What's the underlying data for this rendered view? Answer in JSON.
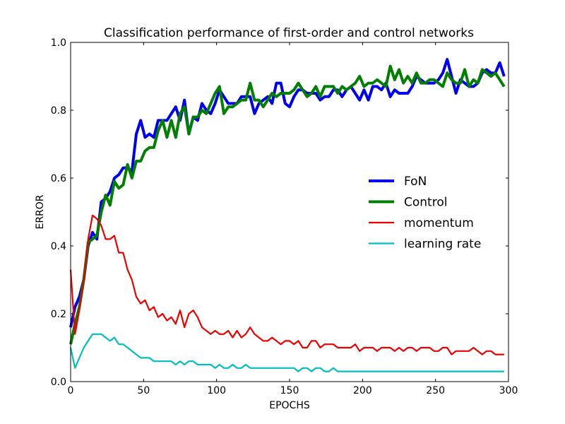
{
  "chart_data": {
    "type": "line",
    "title": "Classification performance of first-order and control networks",
    "xlabel": "EPOCHS",
    "ylabel": "ERROR",
    "xlim": [
      0,
      300
    ],
    "ylim": [
      0.0,
      1.0
    ],
    "xticks": [
      0,
      50,
      100,
      150,
      200,
      250,
      300
    ],
    "xtick_labels": [
      "0",
      "50",
      "100",
      "150",
      "200",
      "250",
      "300"
    ],
    "yticks": [
      0.0,
      0.2,
      0.4,
      0.6,
      0.8,
      1.0
    ],
    "ytick_labels": [
      "0.0",
      "0.2",
      "0.4",
      "0.6",
      "0.8",
      "1.0"
    ],
    "grid": false,
    "legend_position": "center-right",
    "series": [
      {
        "name": "FoN",
        "color": "#0000ee",
        "stroke": "thick",
        "x": [
          0,
          3,
          6,
          9,
          12,
          15,
          18,
          21,
          24,
          27,
          30,
          33,
          36,
          39,
          42,
          45,
          48,
          51,
          54,
          57,
          60,
          63,
          66,
          69,
          72,
          75,
          78,
          81,
          84,
          87,
          90,
          93,
          96,
          99,
          102,
          105,
          108,
          111,
          114,
          117,
          120,
          123,
          126,
          129,
          132,
          135,
          138,
          141,
          144,
          147,
          150,
          153,
          156,
          159,
          162,
          165,
          168,
          171,
          174,
          177,
          180,
          183,
          186,
          189,
          192,
          195,
          198,
          201,
          204,
          207,
          210,
          213,
          216,
          219,
          222,
          225,
          228,
          231,
          234,
          237,
          240,
          243,
          246,
          249,
          252,
          255,
          258,
          261,
          264,
          267,
          270,
          273,
          276,
          279,
          282,
          285,
          288,
          291,
          294,
          297
        ],
        "values": [
          0.16,
          0.22,
          0.25,
          0.3,
          0.4,
          0.44,
          0.42,
          0.53,
          0.54,
          0.56,
          0.6,
          0.61,
          0.63,
          0.63,
          0.62,
          0.73,
          0.77,
          0.72,
          0.73,
          0.72,
          0.77,
          0.77,
          0.77,
          0.79,
          0.81,
          0.77,
          0.83,
          0.73,
          0.78,
          0.77,
          0.82,
          0.8,
          0.79,
          0.82,
          0.86,
          0.84,
          0.82,
          0.82,
          0.82,
          0.84,
          0.84,
          0.84,
          0.79,
          0.82,
          0.83,
          0.84,
          0.82,
          0.88,
          0.88,
          0.82,
          0.81,
          0.84,
          0.86,
          0.86,
          0.85,
          0.85,
          0.85,
          0.83,
          0.84,
          0.84,
          0.86,
          0.86,
          0.84,
          0.86,
          0.87,
          0.85,
          0.83,
          0.86,
          0.83,
          0.87,
          0.87,
          0.86,
          0.88,
          0.84,
          0.86,
          0.85,
          0.85,
          0.85,
          0.87,
          0.9,
          0.89,
          0.88,
          0.88,
          0.88,
          0.89,
          0.91,
          0.95,
          0.9,
          0.85,
          0.89,
          0.88,
          0.87,
          0.87,
          0.88,
          0.91,
          0.92,
          0.91,
          0.91,
          0.94,
          0.9
        ]
      },
      {
        "name": "Control",
        "color": "#007f00",
        "stroke": "thick",
        "x": [
          0,
          3,
          6,
          9,
          12,
          15,
          18,
          21,
          24,
          27,
          30,
          33,
          36,
          39,
          42,
          45,
          48,
          51,
          54,
          57,
          60,
          63,
          66,
          69,
          72,
          75,
          78,
          81,
          84,
          87,
          90,
          93,
          96,
          99,
          102,
          105,
          108,
          111,
          114,
          117,
          120,
          123,
          126,
          129,
          132,
          135,
          138,
          141,
          144,
          147,
          150,
          153,
          156,
          159,
          162,
          165,
          168,
          171,
          174,
          177,
          180,
          183,
          186,
          189,
          192,
          195,
          198,
          201,
          204,
          207,
          210,
          213,
          216,
          219,
          222,
          225,
          228,
          231,
          234,
          237,
          240,
          243,
          246,
          249,
          252,
          255,
          258,
          261,
          264,
          267,
          270,
          273,
          276,
          279,
          282,
          285,
          288,
          291,
          294,
          297
        ],
        "values": [
          0.11,
          0.17,
          0.22,
          0.3,
          0.41,
          0.42,
          0.43,
          0.5,
          0.55,
          0.52,
          0.59,
          0.57,
          0.58,
          0.64,
          0.6,
          0.65,
          0.65,
          0.68,
          0.69,
          0.69,
          0.74,
          0.77,
          0.72,
          0.77,
          0.72,
          0.79,
          0.81,
          0.73,
          0.78,
          0.78,
          0.8,
          0.79,
          0.82,
          0.85,
          0.87,
          0.79,
          0.81,
          0.81,
          0.82,
          0.83,
          0.83,
          0.88,
          0.83,
          0.83,
          0.81,
          0.83,
          0.85,
          0.84,
          0.85,
          0.85,
          0.85,
          0.86,
          0.88,
          0.86,
          0.84,
          0.85,
          0.87,
          0.84,
          0.87,
          0.87,
          0.87,
          0.85,
          0.87,
          0.86,
          0.87,
          0.88,
          0.9,
          0.87,
          0.88,
          0.88,
          0.89,
          0.88,
          0.87,
          0.93,
          0.89,
          0.92,
          0.88,
          0.9,
          0.88,
          0.91,
          0.88,
          0.88,
          0.89,
          0.89,
          0.88,
          0.87,
          0.91,
          0.89,
          0.88,
          0.88,
          0.92,
          0.87,
          0.89,
          0.88,
          0.92,
          0.91,
          0.9,
          0.91,
          0.89,
          0.87
        ]
      },
      {
        "name": "momentum",
        "color": "#ee0000",
        "stroke": "normal",
        "x": [
          0,
          3,
          6,
          9,
          12,
          15,
          18,
          21,
          24,
          27,
          30,
          33,
          36,
          39,
          42,
          45,
          48,
          51,
          54,
          57,
          60,
          63,
          66,
          69,
          72,
          75,
          78,
          81,
          84,
          87,
          90,
          93,
          96,
          99,
          102,
          105,
          108,
          111,
          114,
          117,
          120,
          123,
          126,
          129,
          132,
          135,
          138,
          141,
          144,
          147,
          150,
          153,
          156,
          159,
          162,
          165,
          168,
          171,
          174,
          177,
          180,
          183,
          186,
          189,
          192,
          195,
          198,
          201,
          204,
          207,
          210,
          213,
          216,
          219,
          222,
          225,
          228,
          231,
          234,
          237,
          240,
          243,
          246,
          249,
          252,
          255,
          258,
          261,
          264,
          267,
          270,
          273,
          276,
          279,
          282,
          285,
          288,
          291,
          294,
          297
        ],
        "values": [
          0.33,
          0.14,
          0.21,
          0.3,
          0.42,
          0.49,
          0.48,
          0.46,
          0.42,
          0.42,
          0.43,
          0.38,
          0.38,
          0.33,
          0.3,
          0.25,
          0.23,
          0.24,
          0.21,
          0.22,
          0.19,
          0.2,
          0.18,
          0.19,
          0.17,
          0.21,
          0.16,
          0.2,
          0.21,
          0.19,
          0.16,
          0.15,
          0.14,
          0.15,
          0.14,
          0.14,
          0.15,
          0.13,
          0.15,
          0.13,
          0.14,
          0.16,
          0.14,
          0.13,
          0.12,
          0.12,
          0.13,
          0.12,
          0.11,
          0.12,
          0.12,
          0.11,
          0.12,
          0.1,
          0.1,
          0.12,
          0.12,
          0.1,
          0.11,
          0.11,
          0.11,
          0.1,
          0.1,
          0.1,
          0.1,
          0.11,
          0.09,
          0.1,
          0.1,
          0.1,
          0.09,
          0.1,
          0.1,
          0.1,
          0.09,
          0.1,
          0.09,
          0.1,
          0.1,
          0.09,
          0.1,
          0.1,
          0.1,
          0.09,
          0.09,
          0.1,
          0.1,
          0.08,
          0.09,
          0.09,
          0.09,
          0.09,
          0.1,
          0.09,
          0.08,
          0.09,
          0.09,
          0.08,
          0.08,
          0.08
        ]
      },
      {
        "name": "learning rate",
        "color": "#00bfbf",
        "stroke": "normal",
        "x": [
          0,
          3,
          6,
          9,
          12,
          15,
          18,
          21,
          24,
          27,
          30,
          33,
          36,
          39,
          42,
          45,
          48,
          51,
          54,
          57,
          60,
          63,
          66,
          69,
          72,
          75,
          78,
          81,
          84,
          87,
          90,
          93,
          96,
          99,
          102,
          105,
          108,
          111,
          114,
          117,
          120,
          123,
          126,
          129,
          132,
          135,
          138,
          141,
          144,
          147,
          150,
          153,
          156,
          159,
          162,
          165,
          168,
          171,
          174,
          177,
          180,
          183,
          186,
          189,
          192,
          195,
          198,
          201,
          204,
          207,
          210,
          213,
          216,
          219,
          222,
          225,
          228,
          231,
          234,
          237,
          240,
          243,
          246,
          249,
          252,
          255,
          258,
          261,
          264,
          267,
          270,
          273,
          276,
          279,
          282,
          285,
          288,
          291,
          294,
          297
        ],
        "values": [
          0.1,
          0.04,
          0.07,
          0.1,
          0.12,
          0.14,
          0.14,
          0.14,
          0.13,
          0.12,
          0.13,
          0.11,
          0.11,
          0.1,
          0.09,
          0.08,
          0.07,
          0.07,
          0.07,
          0.06,
          0.06,
          0.06,
          0.06,
          0.06,
          0.05,
          0.06,
          0.05,
          0.06,
          0.06,
          0.05,
          0.05,
          0.05,
          0.05,
          0.04,
          0.05,
          0.04,
          0.04,
          0.05,
          0.04,
          0.04,
          0.05,
          0.04,
          0.04,
          0.04,
          0.04,
          0.04,
          0.04,
          0.04,
          0.04,
          0.04,
          0.04,
          0.04,
          0.03,
          0.04,
          0.04,
          0.03,
          0.04,
          0.04,
          0.03,
          0.03,
          0.04,
          0.03,
          0.03,
          0.03,
          0.03,
          0.03,
          0.03,
          0.03,
          0.03,
          0.03,
          0.03,
          0.03,
          0.03,
          0.03,
          0.03,
          0.03,
          0.03,
          0.03,
          0.03,
          0.03,
          0.03,
          0.03,
          0.03,
          0.03,
          0.03,
          0.03,
          0.03,
          0.03,
          0.03,
          0.03,
          0.03,
          0.03,
          0.03,
          0.03,
          0.03,
          0.03,
          0.03,
          0.03,
          0.03,
          0.03
        ]
      }
    ]
  }
}
